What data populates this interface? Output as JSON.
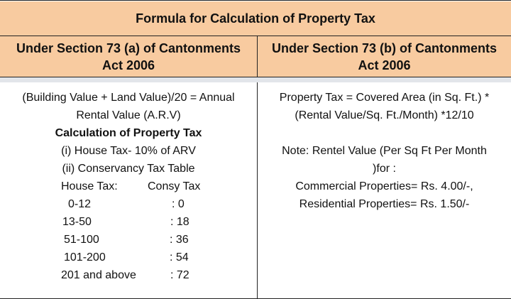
{
  "title": "Formula for Calculation of Property Tax",
  "col_a": {
    "header": [
      "Under Section 73 (a) of Cantonments",
      "Act 2006"
    ],
    "lines": [
      "(Building Value + Land Value)/20  =  Annual",
      "Rental Value (A.R.V)"
    ],
    "subheading": "Calculation of Property Tax",
    "items": [
      "(i) House Tax- 10% of ARV",
      "(ii) Conservancy Tax Table"
    ],
    "table_header": {
      "house": "House Tax:",
      "consy": "Consy Tax"
    },
    "table_rows": [
      {
        "house": "0-12",
        "consy": ": 0"
      },
      {
        "house": "13-50",
        "consy": ": 18"
      },
      {
        "house": "51-100",
        "consy": ": 36"
      },
      {
        "house": "101-200",
        "consy": ": 54"
      },
      {
        "house": "201 and above",
        "consy": ": 72"
      }
    ]
  },
  "col_b": {
    "header": [
      "Under Section 73 (b) of Cantonments",
      "Act 2006"
    ],
    "formula": [
      "Property Tax = Covered Area (in Sq. Ft.) *",
      "(Rental Value/Sq. Ft./Month) *12/10"
    ],
    "note": [
      "Note: Rentel Value (Per Sq Ft Per Month",
      ")for :",
      "Commercial Properties= Rs. 4.00/-,",
      "Residential Properties= Rs. 1.50/-"
    ]
  }
}
